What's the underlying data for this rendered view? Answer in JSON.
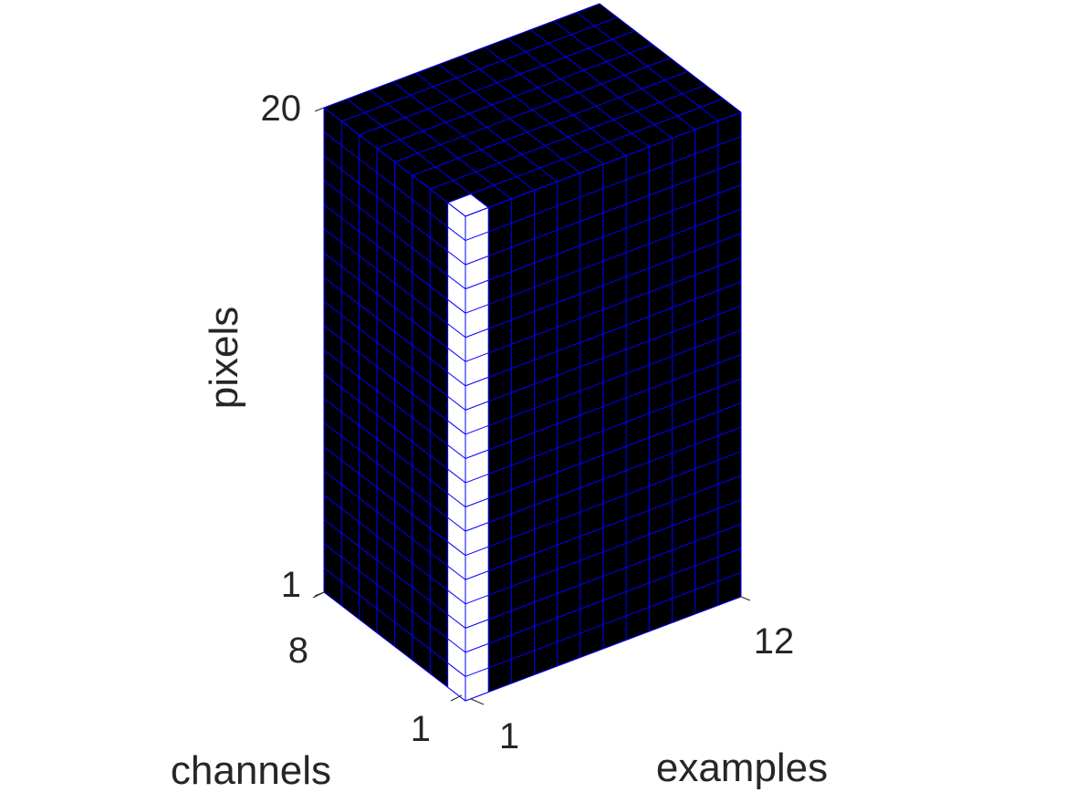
{
  "chart_data": {
    "type": "3d-voxel-grid",
    "axes": {
      "pixels": {
        "label": "pixels",
        "range": [
          1,
          20
        ],
        "ticks": [
          "1",
          "20"
        ]
      },
      "channels": {
        "label": "channels",
        "range": [
          1,
          8
        ],
        "ticks": [
          "1",
          "8"
        ]
      },
      "examples": {
        "label": "examples",
        "range": [
          1,
          12
        ],
        "ticks": [
          "1",
          "12"
        ]
      }
    },
    "highlight": {
      "channel": 1,
      "example": 1,
      "pixels": [
        1,
        20
      ]
    },
    "colors": {
      "cube_fill": "#000000",
      "grid_line": "#0000ff",
      "highlight_fill": "#ffffff",
      "text": "#262626"
    }
  }
}
